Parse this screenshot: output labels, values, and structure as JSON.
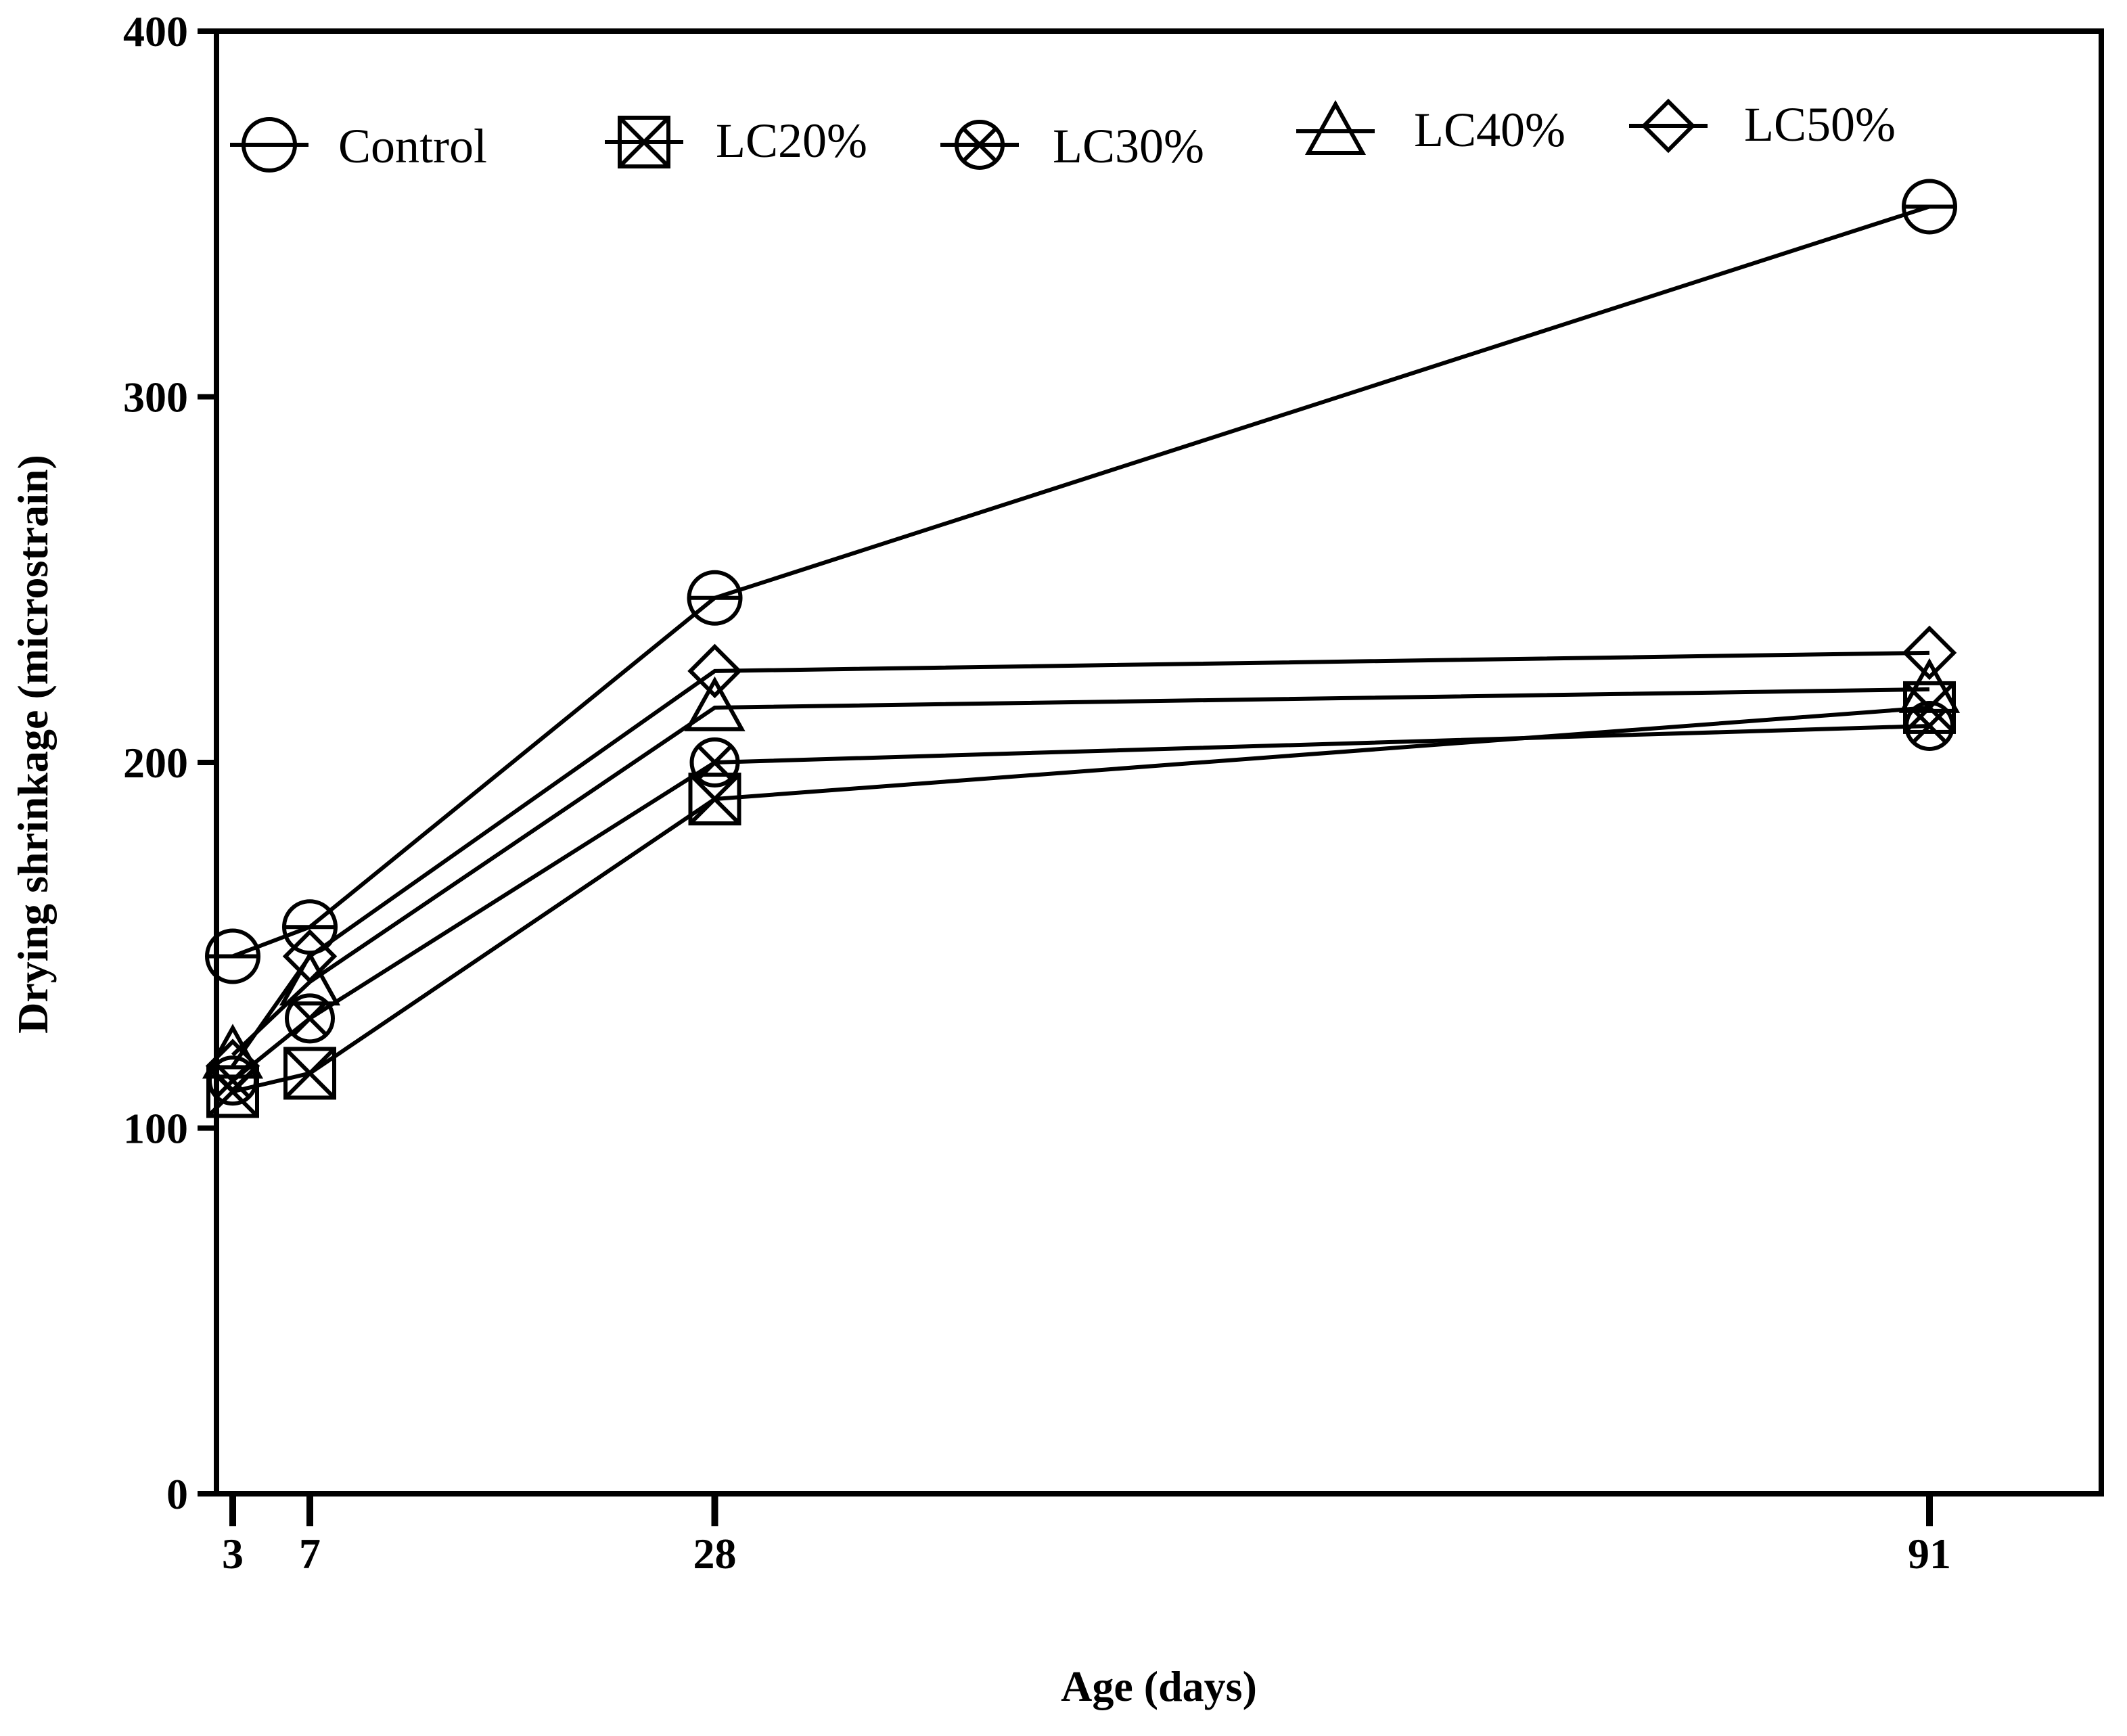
{
  "chart_data": {
    "type": "line",
    "title": "",
    "xlabel": "Age (days)",
    "ylabel": "Drying shrinkage (microstrain)",
    "x": [
      3,
      7,
      28,
      91
    ],
    "x_ticks": [
      "3",
      "7",
      "28",
      "91"
    ],
    "xlim": [
      0,
      101
    ],
    "ylim": [
      0,
      400
    ],
    "y_ticks": [
      "0",
      "100",
      "200",
      "300",
      "400"
    ],
    "grid": false,
    "legend_position": "top",
    "series": [
      {
        "name": "Control",
        "marker": "circle-dash",
        "values": [
          147,
          155,
          245,
          352
        ]
      },
      {
        "name": "LC20%",
        "marker": "square-x",
        "values": [
          110,
          115,
          190,
          215
        ]
      },
      {
        "name": "LC30%",
        "marker": "circle-x",
        "values": [
          113,
          130,
          200,
          210
        ]
      },
      {
        "name": "LC40%",
        "marker": "triangle",
        "values": [
          120,
          140,
          215,
          220
        ]
      },
      {
        "name": "LC50%",
        "marker": "diamond",
        "values": [
          117,
          147,
          225,
          230
        ]
      }
    ]
  }
}
